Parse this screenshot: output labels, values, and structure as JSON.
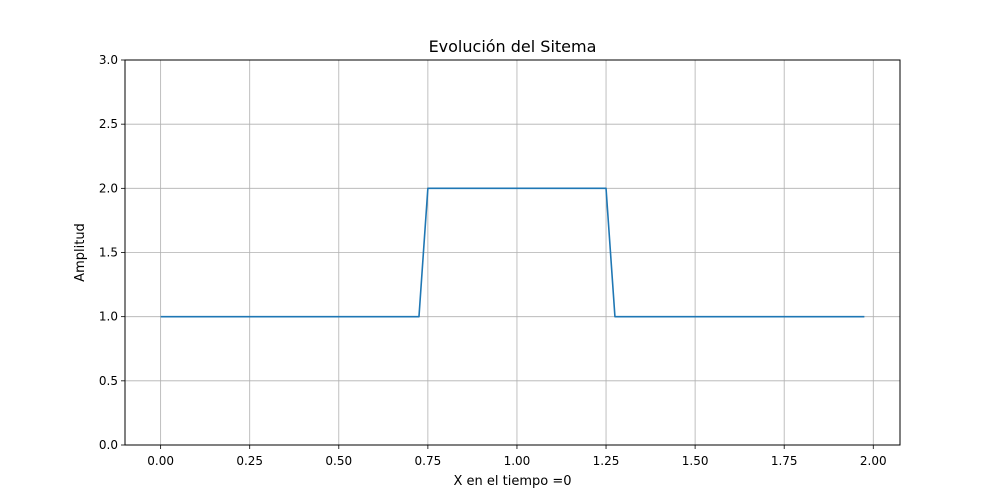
{
  "chart_data": {
    "type": "line",
    "title": "Evolución del Sitema",
    "xlabel": "X en el tiempo =0",
    "ylabel": "Amplitud",
    "xlim": [
      -0.1,
      2.075
    ],
    "ylim": [
      0.0,
      3.0
    ],
    "grid": true,
    "xticks": [
      0.0,
      0.25,
      0.5,
      0.75,
      1.0,
      1.25,
      1.5,
      1.75,
      2.0
    ],
    "xtick_labels": [
      "0.00",
      "0.25",
      "0.50",
      "0.75",
      "1.00",
      "1.25",
      "1.50",
      "1.75",
      "2.00"
    ],
    "yticks": [
      0.0,
      0.5,
      1.0,
      1.5,
      2.0,
      2.5,
      3.0
    ],
    "ytick_labels": [
      "0.0",
      "0.5",
      "1.0",
      "1.5",
      "2.0",
      "2.5",
      "3.0"
    ],
    "series": [
      {
        "color": "#1f77b4",
        "x": [
          0.0,
          0.725,
          0.75,
          1.25,
          1.275,
          1.975
        ],
        "y": [
          1.0,
          1.0,
          2.0,
          2.0,
          1.0,
          1.0
        ]
      }
    ],
    "colors": {
      "grid": "#b0b0b0",
      "axes": "#000000",
      "background": "#ffffff"
    }
  }
}
